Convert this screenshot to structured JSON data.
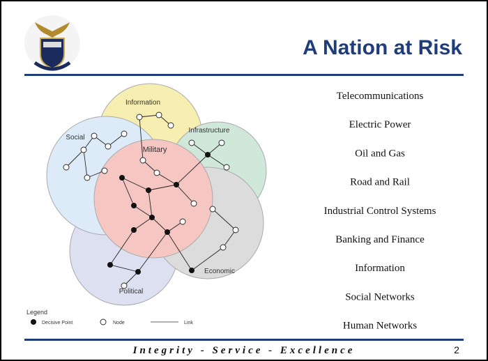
{
  "header": {
    "title": "A Nation at Risk"
  },
  "diagram": {
    "spheres": [
      "Information",
      "Social",
      "Infrastructure",
      "Military",
      "Economic",
      "Political"
    ],
    "legend": {
      "title": "Legend",
      "items": [
        "Decisive Point",
        "Node",
        "Link"
      ]
    }
  },
  "list": [
    "Telecommunications",
    "Electric Power",
    "Oil and Gas",
    "Road and Rail",
    "Industrial Control Systems",
    "Banking and Finance",
    "Information",
    "Social Networks",
    "Human Networks"
  ],
  "footer": {
    "motto": "Integrity - Service - Excellence",
    "page": 2
  }
}
